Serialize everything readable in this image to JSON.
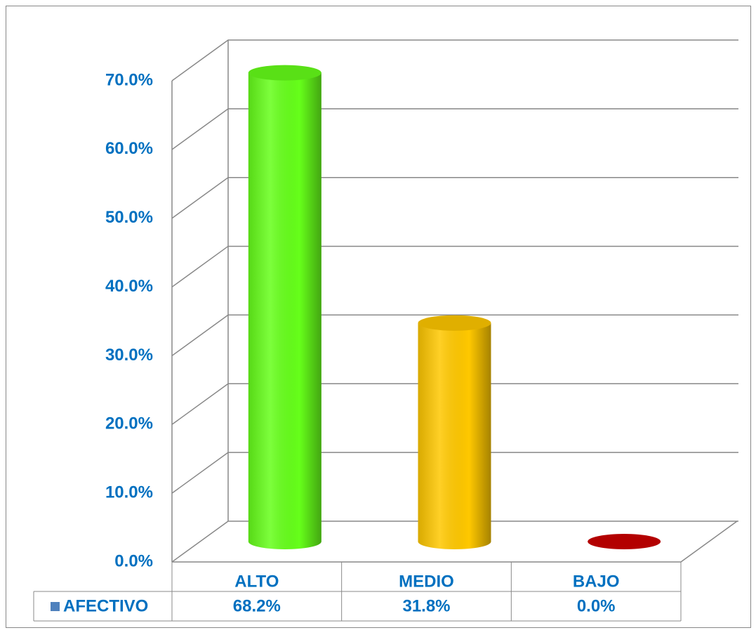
{
  "chart_data": {
    "type": "bar3d",
    "categories": [
      "ALTO",
      "MEDIO",
      "BAJO"
    ],
    "series": [
      {
        "name": "AFECTIVO",
        "color": "#4f81bd",
        "colors": [
          "#66ff1a",
          "#ffc800",
          "#cc0000"
        ],
        "values": [
          68.2,
          31.8,
          0.0
        ],
        "value_labels": [
          "68.2%",
          "31.8%",
          "0.0%"
        ]
      }
    ],
    "ylim": [
      0,
      70
    ],
    "yticks": [
      {
        "value": 0,
        "label": "0.0%"
      },
      {
        "value": 10,
        "label": "10.0%"
      },
      {
        "value": 20,
        "label": "20.0%"
      },
      {
        "value": 30,
        "label": "30.0%"
      },
      {
        "value": 40,
        "label": "40.0%"
      },
      {
        "value": 50,
        "label": "50.0%"
      },
      {
        "value": 60,
        "label": "60.0%"
      },
      {
        "value": 70,
        "label": "70.0%"
      }
    ],
    "grid": true,
    "data_table": true
  }
}
